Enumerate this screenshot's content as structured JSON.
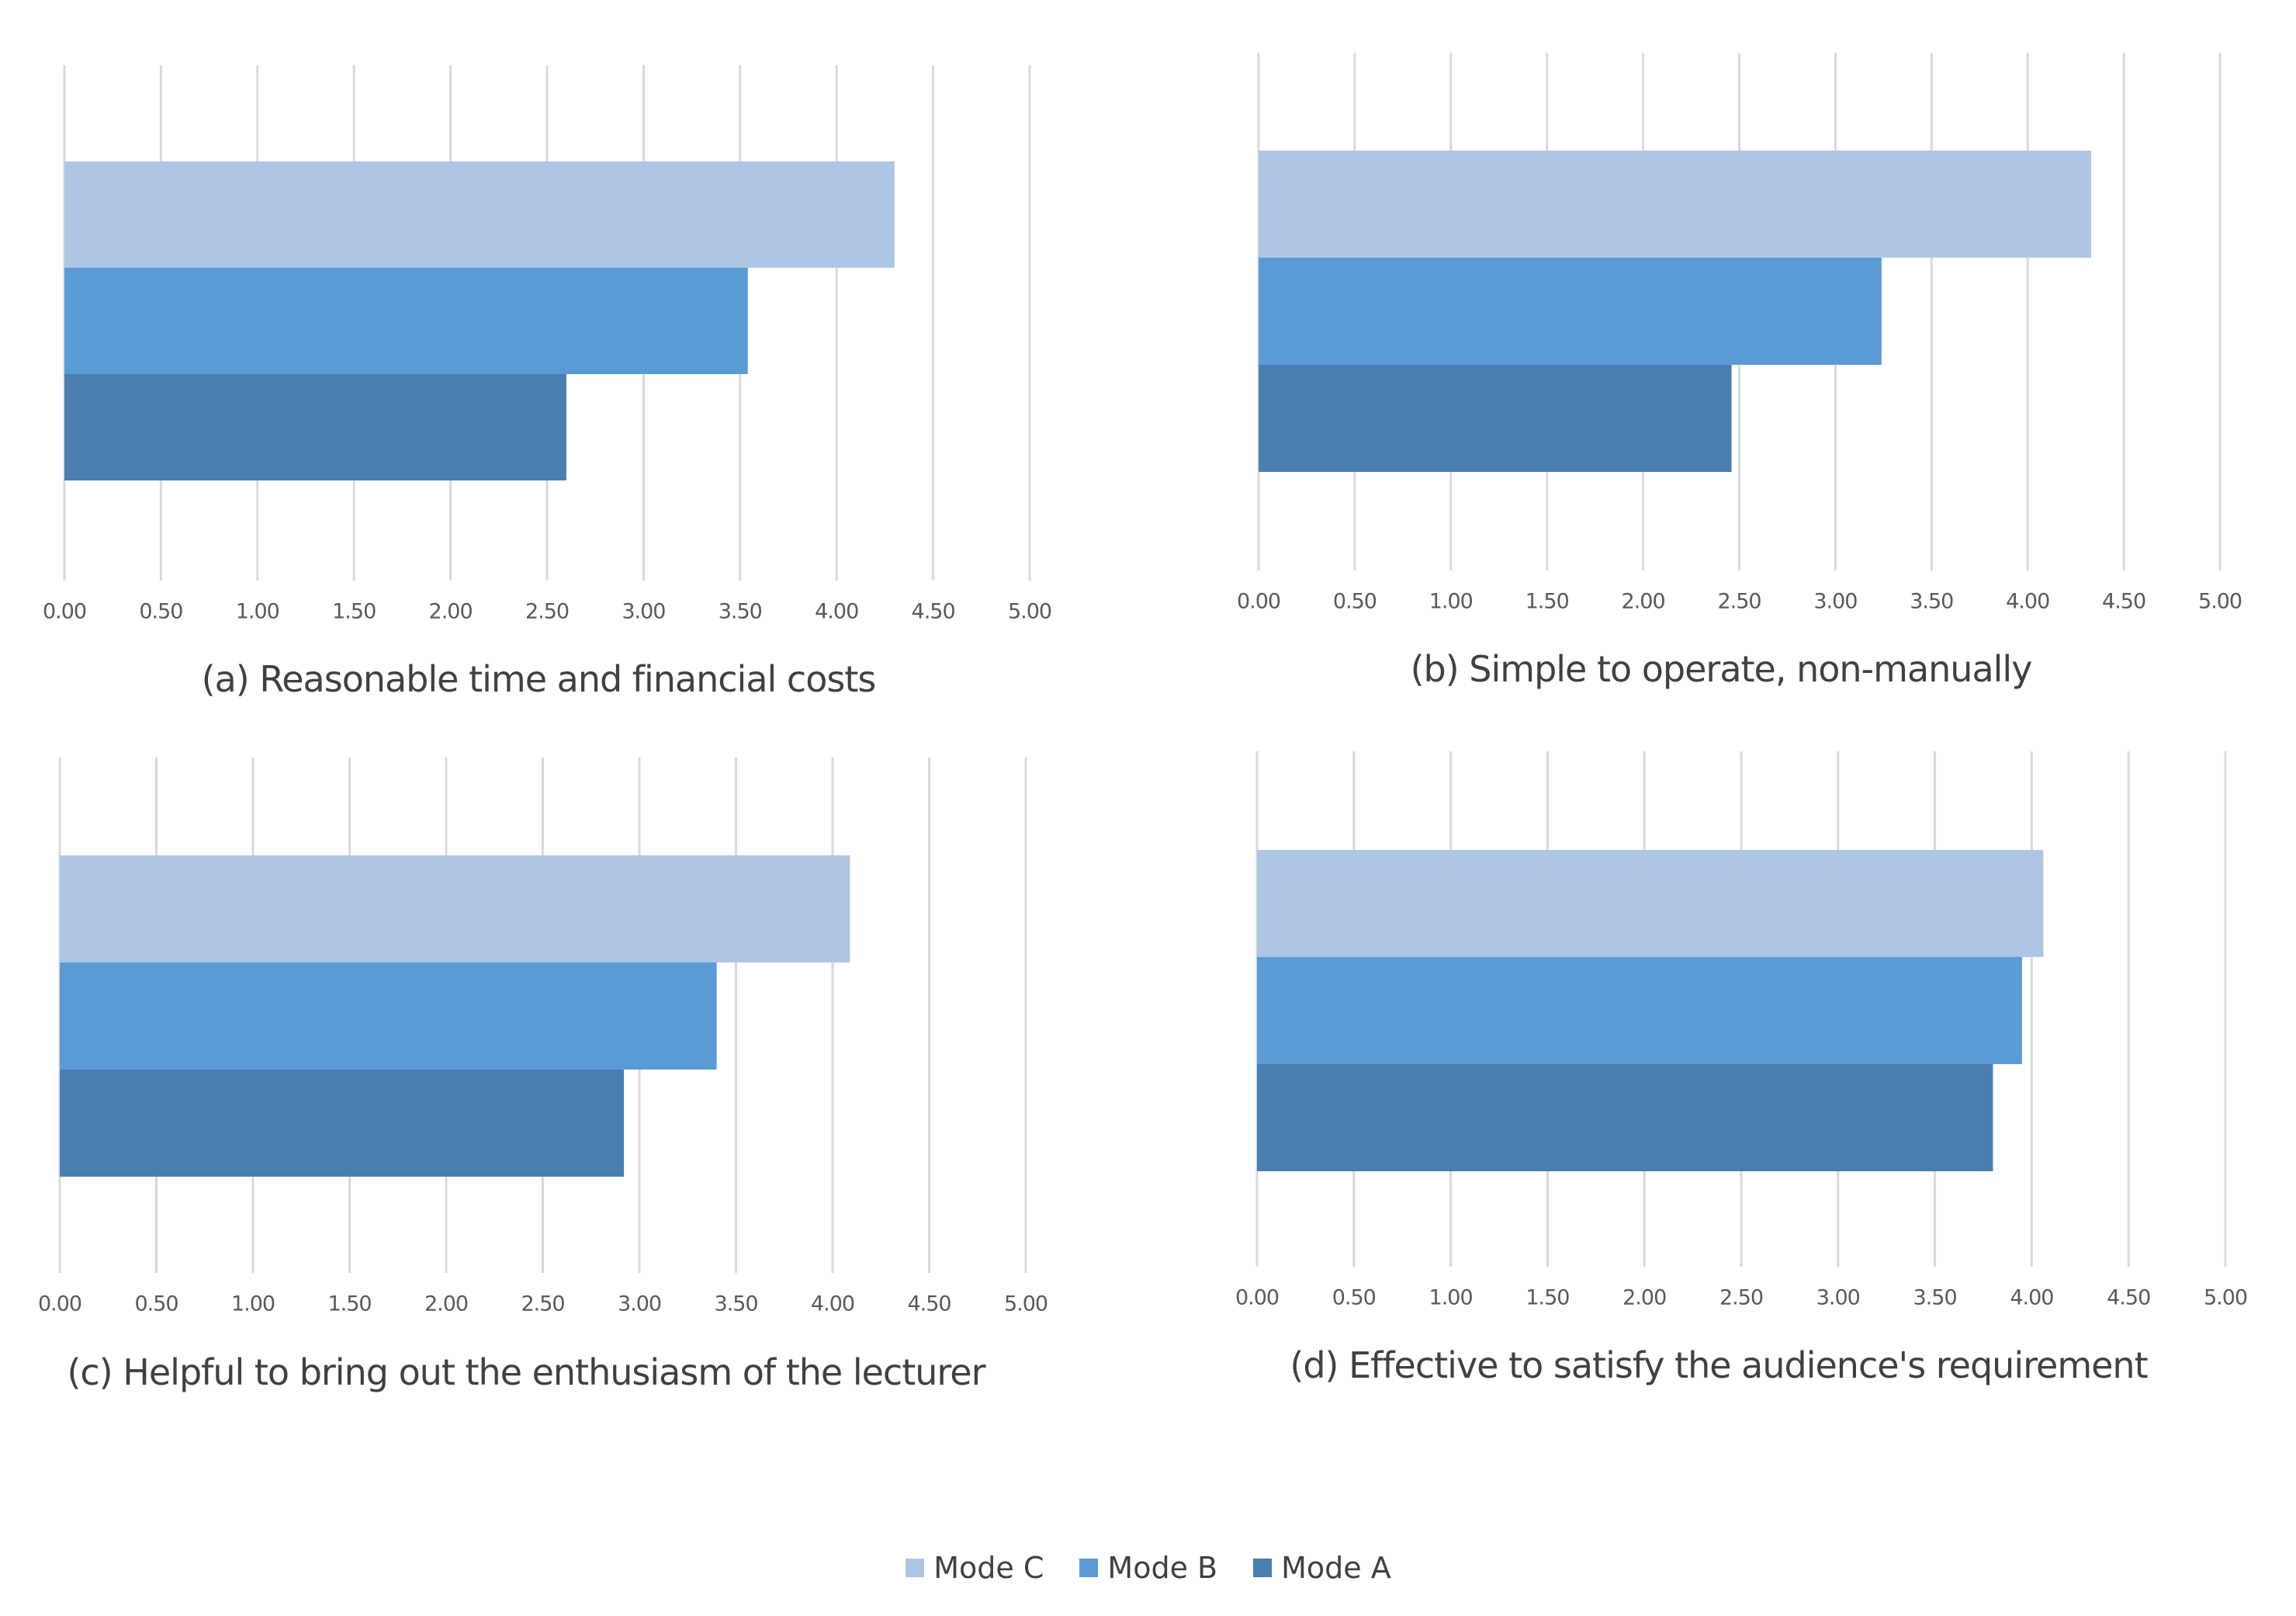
{
  "series_names": [
    "Mode C",
    "Mode B",
    "Mode A"
  ],
  "colors": {
    "Mode C": "#aec6e5",
    "Mode B": "#5b9bd5",
    "Mode A": "#4a7eb0"
  },
  "legend": [
    {
      "label": "Mode C",
      "color": "#aec6e5"
    },
    {
      "label": "Mode B",
      "color": "#5b9bd5"
    },
    {
      "label": "Mode A",
      "color": "#4a7eb0"
    }
  ],
  "chart_data": [
    {
      "type": "bar",
      "orientation": "horizontal",
      "title": "(a) Reasonable time and financial costs",
      "categories": [
        ""
      ],
      "series": [
        {
          "name": "Mode C",
          "values": [
            4.3
          ]
        },
        {
          "name": "Mode B",
          "values": [
            3.54
          ]
        },
        {
          "name": "Mode A",
          "values": [
            2.6
          ]
        }
      ],
      "xlim": [
        0,
        5
      ],
      "ticks": [
        "0.00",
        "0.50",
        "1.00",
        "1.50",
        "2.00",
        "2.50",
        "3.00",
        "3.50",
        "4.00",
        "4.50",
        "5.00"
      ],
      "grid": true,
      "legend": "bottom"
    },
    {
      "type": "bar",
      "orientation": "horizontal",
      "title": "(b) Simple to operate, non-manually",
      "categories": [
        ""
      ],
      "series": [
        {
          "name": "Mode C",
          "values": [
            4.33
          ]
        },
        {
          "name": "Mode B",
          "values": [
            3.24
          ]
        },
        {
          "name": "Mode A",
          "values": [
            2.46
          ]
        }
      ],
      "xlim": [
        0,
        5
      ],
      "ticks": [
        "0.00",
        "0.50",
        "1.00",
        "1.50",
        "2.00",
        "2.50",
        "3.00",
        "3.50",
        "4.00",
        "4.50",
        "5.00"
      ],
      "grid": true,
      "legend": "bottom"
    },
    {
      "type": "bar",
      "orientation": "horizontal",
      "title": "(c) Helpful to bring out the enthusiasm of the lecturer",
      "categories": [
        ""
      ],
      "series": [
        {
          "name": "Mode C",
          "values": [
            4.09
          ]
        },
        {
          "name": "Mode B",
          "values": [
            3.4
          ]
        },
        {
          "name": "Mode A",
          "values": [
            2.92
          ]
        }
      ],
      "xlim": [
        0,
        5
      ],
      "ticks": [
        "0.00",
        "0.50",
        "1.00",
        "1.50",
        "2.00",
        "2.50",
        "3.00",
        "3.50",
        "4.00",
        "4.50",
        "5.00"
      ],
      "grid": true,
      "legend": "bottom"
    },
    {
      "type": "bar",
      "orientation": "horizontal",
      "title": "(d) Effective to satisfy the  audience's requirement",
      "categories": [
        ""
      ],
      "series": [
        {
          "name": "Mode C",
          "values": [
            4.06
          ]
        },
        {
          "name": "Mode B",
          "values": [
            3.95
          ]
        },
        {
          "name": "Mode A",
          "values": [
            3.8
          ]
        }
      ],
      "xlim": [
        0,
        5
      ],
      "ticks": [
        "0.00",
        "0.50",
        "1.00",
        "1.50",
        "2.00",
        "2.50",
        "3.00",
        "3.50",
        "4.00",
        "4.50",
        "5.00"
      ],
      "grid": true,
      "legend": "bottom"
    }
  ]
}
